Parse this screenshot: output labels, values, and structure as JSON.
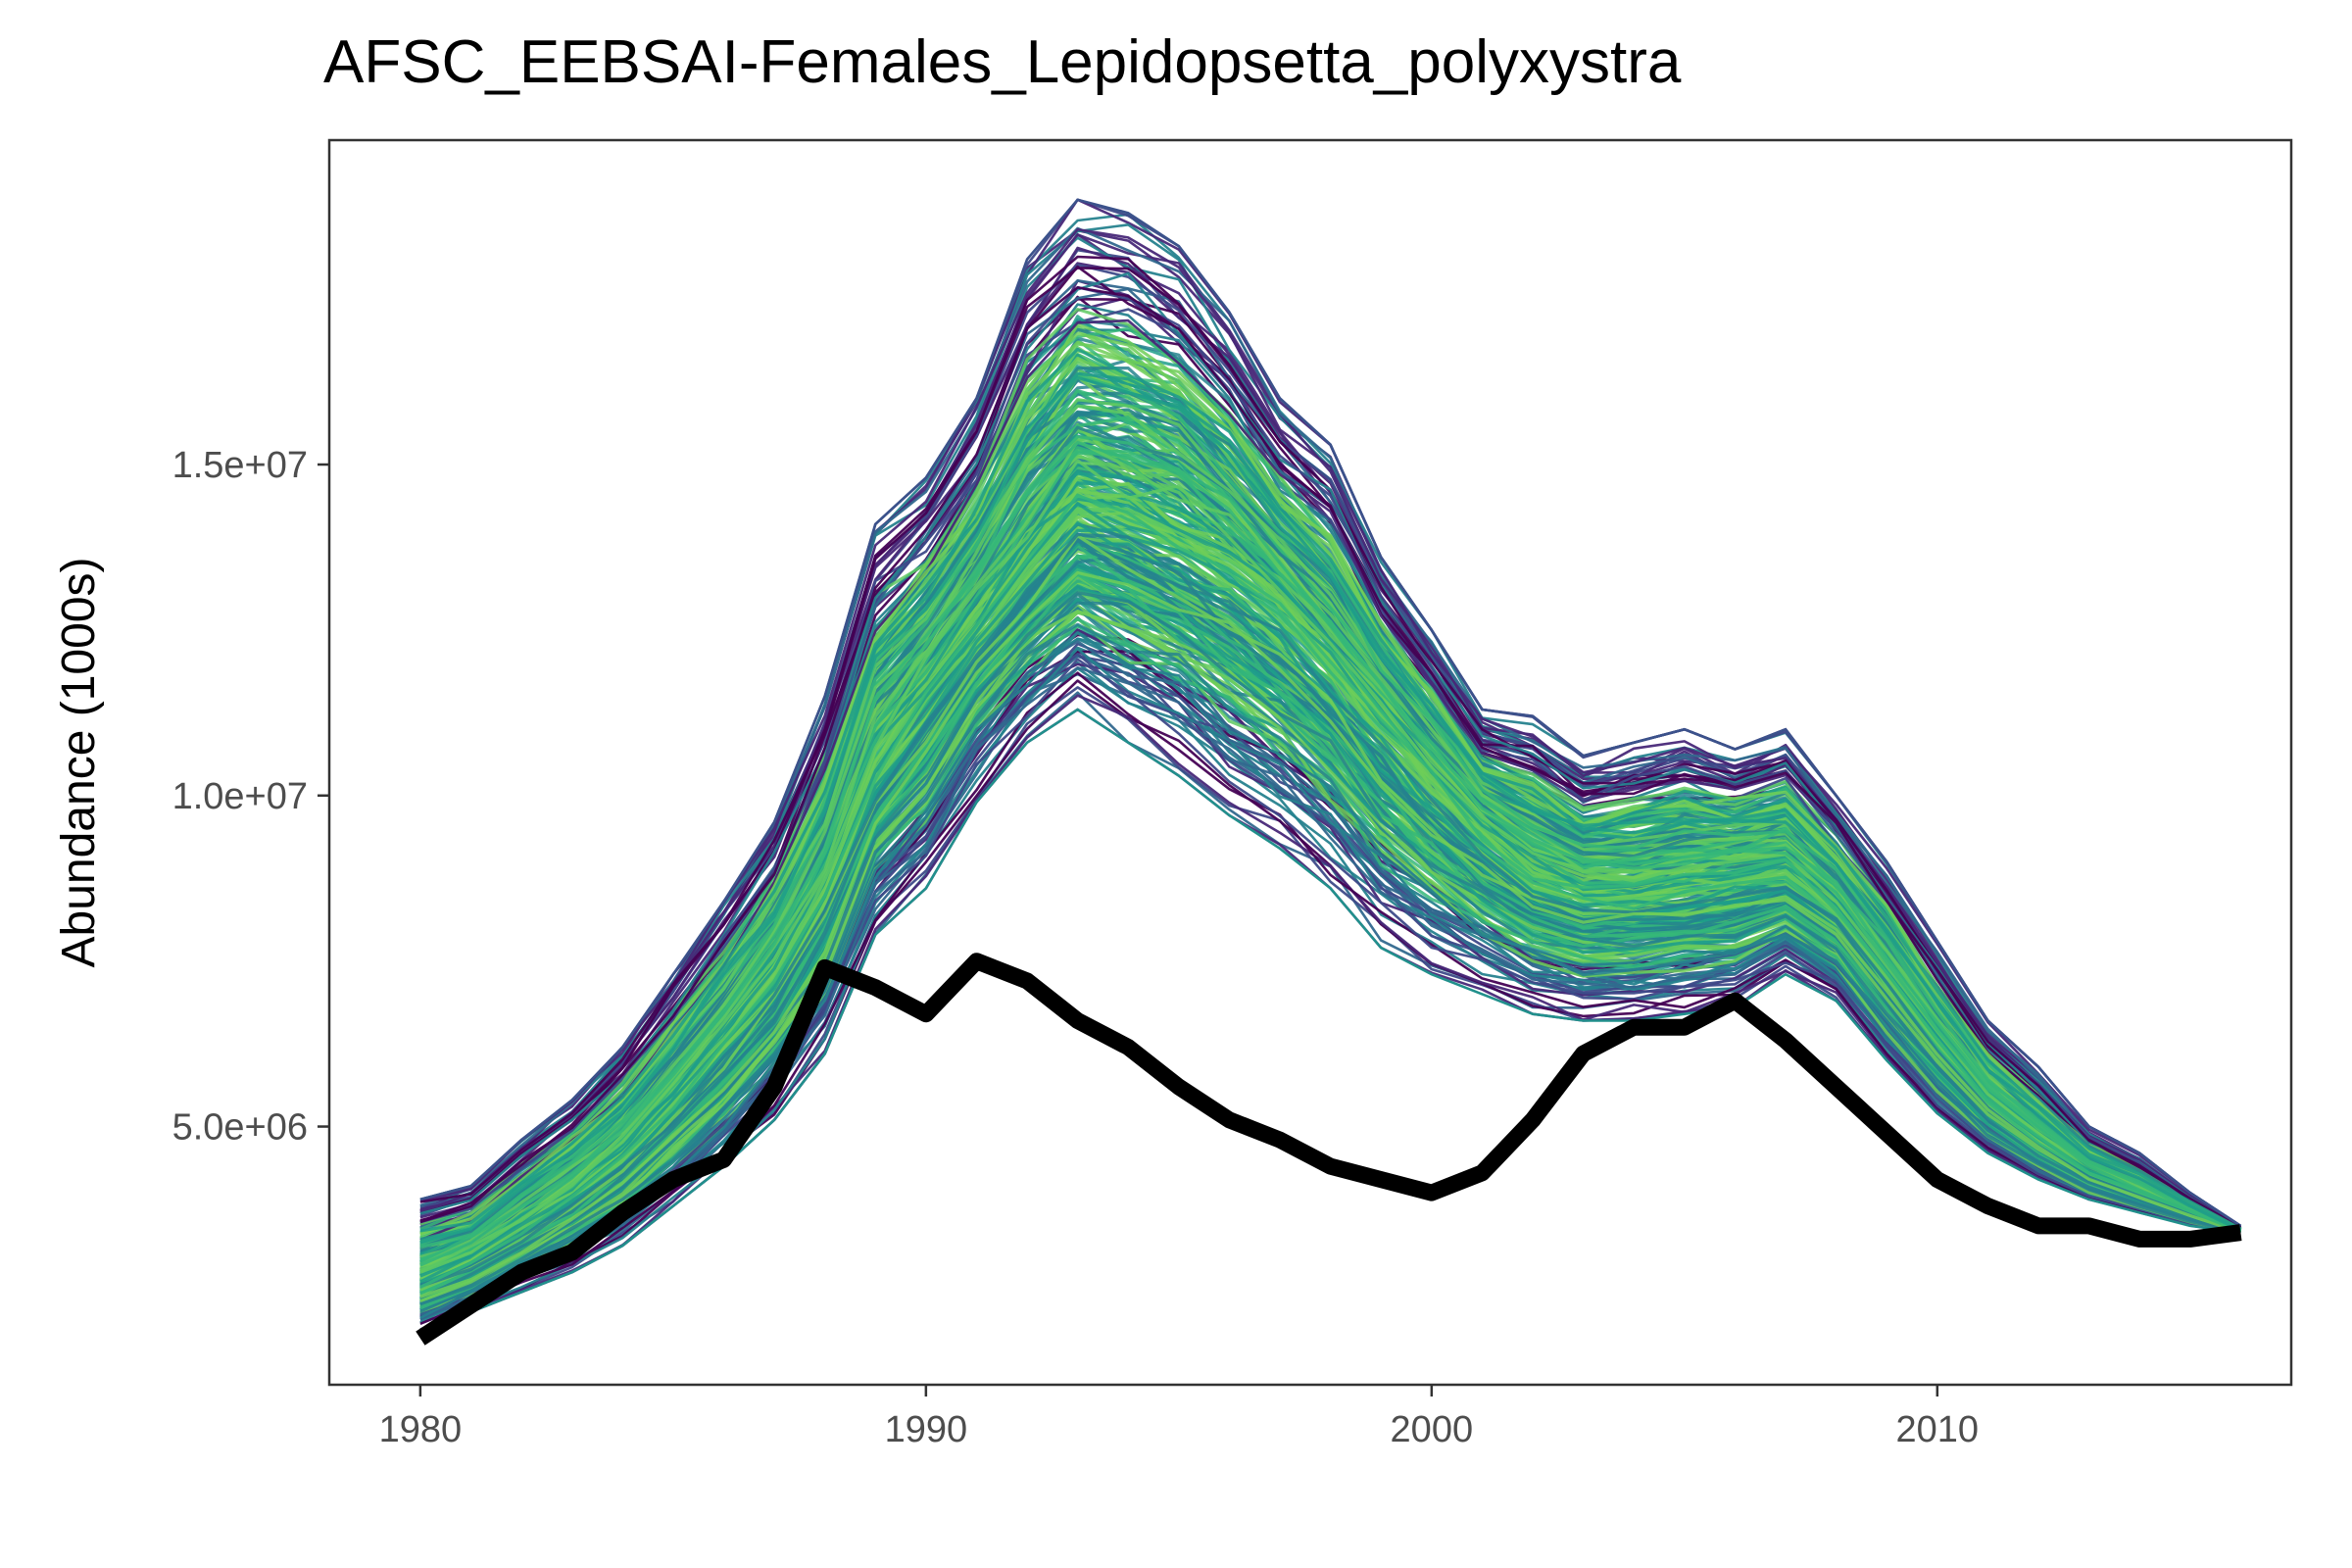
{
  "chart_data": {
    "type": "line",
    "title": "AFSC_EEBSAI-Females_Lepidopsetta_polyxystra",
    "xlabel": "",
    "ylabel": "Abundance (1000s)",
    "xlim": [
      1978.2,
      2017.0
    ],
    "ylim": [
      1100000,
      19900000
    ],
    "x_ticks": [
      1980,
      1990,
      2000,
      2010
    ],
    "x_tick_labels": [
      "1980",
      "1990",
      "2000",
      "2010"
    ],
    "y_ticks": [
      5000000,
      10000000,
      15000000
    ],
    "y_tick_labels": [
      "5.0e+06",
      "1.0e+07",
      "1.5e+07"
    ],
    "grid": false,
    "legend": "none",
    "series": [
      {
        "role": "observed",
        "color": "#000000",
        "x": [
          1980,
          1981,
          1982,
          1983,
          1984,
          1985,
          1986,
          1987,
          1988,
          1989,
          1990,
          1991,
          1992,
          1993,
          1994,
          1995,
          1996,
          1997,
          1998,
          1999,
          2000,
          2001,
          2002,
          2003,
          2004,
          2005,
          2006,
          2007,
          2008,
          2009,
          2010,
          2011,
          2012,
          2013,
          2014,
          2015,
          2016
        ],
        "values": [
          1800000,
          2300000,
          2800000,
          3100000,
          3700000,
          4200000,
          4500000,
          5600000,
          7400000,
          7100000,
          6700000,
          7500000,
          7200000,
          6600000,
          6200000,
          5600000,
          5100000,
          4800000,
          4400000,
          4200000,
          4000000,
          4300000,
          5100000,
          6100000,
          6500000,
          6500000,
          6900000,
          6300000,
          5600000,
          4900000,
          4200000,
          3800000,
          3500000,
          3500000,
          3300000,
          3300000,
          3400000
        ]
      },
      {
        "role": "simulations-envelope-lower",
        "color": "#21908c",
        "x": [
          1980,
          1981,
          1982,
          1983,
          1984,
          1985,
          1986,
          1987,
          1988,
          1989,
          1990,
          1991,
          1992,
          1993,
          1994,
          1995,
          1996,
          1997,
          1998,
          1999,
          2000,
          2001,
          2002,
          2003,
          2004,
          2005,
          2006,
          2007,
          2008,
          2009,
          2010,
          2011,
          2012,
          2013,
          2014,
          2015,
          2016
        ],
        "values": [
          1900000,
          2200000,
          2500000,
          2800000,
          3200000,
          3800000,
          4400000,
          5100000,
          6100000,
          7900000,
          8600000,
          9900000,
          10800000,
          11300000,
          10800000,
          10300000,
          9700000,
          9200000,
          8600000,
          7700000,
          7300000,
          7000000,
          6700000,
          6600000,
          6600000,
          6700000,
          6800000,
          7300000,
          6900000,
          6000000,
          5200000,
          4600000,
          4200000,
          3900000,
          3700000,
          3500000,
          3400000
        ]
      },
      {
        "role": "simulations-envelope-upper",
        "color": "#3b528b",
        "x": [
          1980,
          1981,
          1982,
          1983,
          1984,
          1985,
          1986,
          1987,
          1988,
          1989,
          1990,
          1991,
          1992,
          1993,
          1994,
          1995,
          1996,
          1997,
          1998,
          1999,
          2000,
          2001,
          2002,
          2003,
          2004,
          2005,
          2006,
          2007,
          2008,
          2009,
          2010,
          2011,
          2012,
          2013,
          2014,
          2015,
          2016
        ],
        "values": [
          3900000,
          4100000,
          4800000,
          5400000,
          6200000,
          7300000,
          8400000,
          9600000,
          11500000,
          14100000,
          14800000,
          16000000,
          18100000,
          19000000,
          18800000,
          18300000,
          17300000,
          16000000,
          15300000,
          13600000,
          12500000,
          11300000,
          11200000,
          10600000,
          10800000,
          11000000,
          10700000,
          11000000,
          10000000,
          9000000,
          7800000,
          6600000,
          5900000,
          5000000,
          4600000,
          4000000,
          3500000
        ]
      },
      {
        "role": "simulations-central",
        "color": "#5ec962",
        "x": [
          1980,
          1981,
          1982,
          1983,
          1984,
          1985,
          1986,
          1987,
          1988,
          1989,
          1990,
          1991,
          1992,
          1993,
          1994,
          1995,
          1996,
          1997,
          1998,
          1999,
          2000,
          2001,
          2002,
          2003,
          2004,
          2005,
          2006,
          2007,
          2008,
          2009,
          2010,
          2011,
          2012,
          2013,
          2014,
          2015,
          2016
        ],
        "values": [
          2700000,
          3000000,
          3500000,
          4000000,
          4600000,
          5400000,
          6300000,
          7300000,
          8600000,
          10500000,
          11600000,
          12600000,
          13600000,
          14500000,
          14300000,
          14000000,
          13500000,
          12900000,
          12100000,
          11200000,
          10300000,
          9500000,
          8900000,
          8600000,
          8600000,
          8700000,
          8800000,
          8900000,
          8300000,
          7300000,
          6300000,
          5400000,
          4800000,
          4300000,
          4000000,
          3700000,
          3400000
        ]
      }
    ],
    "simulation_palette": [
      "#440154",
      "#482878",
      "#3e4a89",
      "#31688e",
      "#26828e",
      "#1f9e89",
      "#35b779",
      "#5ec962",
      "#6ece58"
    ]
  }
}
